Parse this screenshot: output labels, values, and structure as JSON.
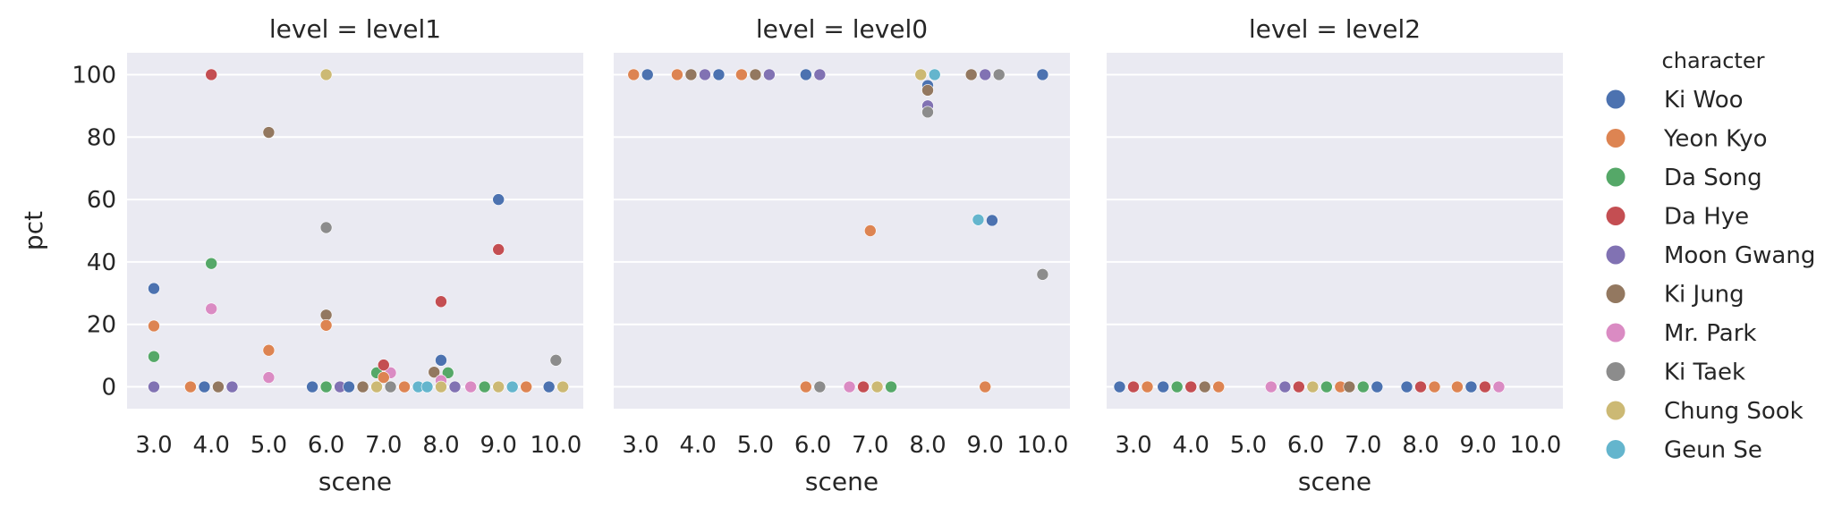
{
  "chart_data": {
    "type": "scatter",
    "facet_variable": "level",
    "ylabel": "pct",
    "xlabel": "scene",
    "ylim": [
      -7,
      107
    ],
    "y_ticks": [
      0,
      20,
      40,
      60,
      80,
      100
    ],
    "x_categories": [
      "3.0",
      "4.0",
      "5.0",
      "6.0",
      "7.0",
      "8.0",
      "9.0",
      "10.0"
    ],
    "grid": true,
    "legend": {
      "title": "character",
      "placement": "right",
      "entries": [
        {
          "name": "Ki Woo",
          "color": "#4c72b0"
        },
        {
          "name": "Yeon Kyo",
          "color": "#dd8452"
        },
        {
          "name": "Da Song",
          "color": "#55a868"
        },
        {
          "name": "Da Hye",
          "color": "#c44e52"
        },
        {
          "name": "Moon Gwang",
          "color": "#8172b3"
        },
        {
          "name": "Ki Jung",
          "color": "#937860"
        },
        {
          "name": "Mr. Park",
          "color": "#da8bc3"
        },
        {
          "name": "Ki Taek",
          "color": "#8c8c8c"
        },
        {
          "name": "Chung Sook",
          "color": "#ccb974"
        },
        {
          "name": "Geun Se",
          "color": "#64b5cd"
        }
      ]
    },
    "panels": [
      {
        "title": "level = level1",
        "points": [
          {
            "scene": 3.0,
            "character": "Ki Woo",
            "pct": 31.5
          },
          {
            "scene": 3.0,
            "character": "Yeon Kyo",
            "pct": 19.5
          },
          {
            "scene": 3.0,
            "character": "Da Song",
            "pct": 9.7
          },
          {
            "scene": 3.0,
            "character": "Moon Gwang",
            "pct": 0
          },
          {
            "scene": 4.0,
            "character": "Da Hye",
            "pct": 100
          },
          {
            "scene": 4.0,
            "character": "Da Song",
            "pct": 39.5
          },
          {
            "scene": 4.0,
            "character": "Mr. Park",
            "pct": 25
          },
          {
            "scene": 4.0,
            "character": "Yeon Kyo",
            "pct": 0
          },
          {
            "scene": 4.0,
            "character": "Ki Woo",
            "pct": 0
          },
          {
            "scene": 4.0,
            "character": "Ki Jung",
            "pct": 0
          },
          {
            "scene": 4.0,
            "character": "Moon Gwang",
            "pct": 0
          },
          {
            "scene": 5.0,
            "character": "Ki Jung",
            "pct": 81.5
          },
          {
            "scene": 5.0,
            "character": "Yeon Kyo",
            "pct": 11.7
          },
          {
            "scene": 5.0,
            "character": "Mr. Park",
            "pct": 3
          },
          {
            "scene": 6.0,
            "character": "Chung Sook",
            "pct": 100
          },
          {
            "scene": 6.0,
            "character": "Ki Taek",
            "pct": 51
          },
          {
            "scene": 6.0,
            "character": "Ki Jung",
            "pct": 23
          },
          {
            "scene": 6.0,
            "character": "Yeon Kyo",
            "pct": 19.7
          },
          {
            "scene": 6.0,
            "character": "Ki Woo",
            "pct": 0
          },
          {
            "scene": 6.0,
            "character": "Da Song",
            "pct": 0
          },
          {
            "scene": 6.0,
            "character": "Moon Gwang",
            "pct": 0
          },
          {
            "scene": 7.0,
            "character": "Da Song",
            "pct": 4.5
          },
          {
            "scene": 7.0,
            "character": "Mr. Park",
            "pct": 4.5
          },
          {
            "scene": 7.0,
            "character": "Da Hye",
            "pct": 7
          },
          {
            "scene": 7.0,
            "character": "Yeon Kyo",
            "pct": 3
          },
          {
            "scene": 7.0,
            "character": "Ki Woo",
            "pct": 0
          },
          {
            "scene": 7.0,
            "character": "Ki Jung",
            "pct": 0
          },
          {
            "scene": 7.0,
            "character": "Chung Sook",
            "pct": 0
          },
          {
            "scene": 7.0,
            "character": "Ki Taek",
            "pct": 0
          },
          {
            "scene": 7.0,
            "character": "Yeon Kyo",
            "pct": 0
          },
          {
            "scene": 7.0,
            "character": "Geun Se",
            "pct": 0
          },
          {
            "scene": 8.0,
            "character": "Da Hye",
            "pct": 27.3
          },
          {
            "scene": 8.0,
            "character": "Ki Woo",
            "pct": 8.5
          },
          {
            "scene": 8.0,
            "character": "Ki Jung",
            "pct": 4.7
          },
          {
            "scene": 8.0,
            "character": "Da Song",
            "pct": 4.5
          },
          {
            "scene": 8.0,
            "character": "Mr. Park",
            "pct": 2
          },
          {
            "scene": 8.0,
            "character": "Geun Se",
            "pct": 0
          },
          {
            "scene": 8.0,
            "character": "Chung Sook",
            "pct": 0
          },
          {
            "scene": 8.0,
            "character": "Moon Gwang",
            "pct": 0
          },
          {
            "scene": 9.0,
            "character": "Ki Woo",
            "pct": 60
          },
          {
            "scene": 9.0,
            "character": "Da Hye",
            "pct": 44
          },
          {
            "scene": 9.0,
            "character": "Mr. Park",
            "pct": 0
          },
          {
            "scene": 9.0,
            "character": "Da Song",
            "pct": 0
          },
          {
            "scene": 9.0,
            "character": "Chung Sook",
            "pct": 0
          },
          {
            "scene": 9.0,
            "character": "Geun Se",
            "pct": 0
          },
          {
            "scene": 9.0,
            "character": "Yeon Kyo",
            "pct": 0
          },
          {
            "scene": 10.0,
            "character": "Ki Taek",
            "pct": 8.5
          },
          {
            "scene": 10.0,
            "character": "Ki Woo",
            "pct": 0
          },
          {
            "scene": 10.0,
            "character": "Chung Sook",
            "pct": 0
          }
        ]
      },
      {
        "title": "level = level0",
        "points": [
          {
            "scene": 3.0,
            "character": "Yeon Kyo",
            "pct": 100
          },
          {
            "scene": 3.0,
            "character": "Ki Woo",
            "pct": 100
          },
          {
            "scene": 4.0,
            "character": "Yeon Kyo",
            "pct": 100
          },
          {
            "scene": 4.0,
            "character": "Ki Jung",
            "pct": 100
          },
          {
            "scene": 4.0,
            "character": "Moon Gwang",
            "pct": 100
          },
          {
            "scene": 4.0,
            "character": "Ki Woo",
            "pct": 100
          },
          {
            "scene": 5.0,
            "character": "Yeon Kyo",
            "pct": 100
          },
          {
            "scene": 5.0,
            "character": "Ki Jung",
            "pct": 100
          },
          {
            "scene": 5.0,
            "character": "Moon Gwang",
            "pct": 100
          },
          {
            "scene": 6.0,
            "character": "Ki Woo",
            "pct": 100
          },
          {
            "scene": 6.0,
            "character": "Moon Gwang",
            "pct": 100
          },
          {
            "scene": 6.0,
            "character": "Yeon Kyo",
            "pct": 0
          },
          {
            "scene": 6.0,
            "character": "Ki Taek",
            "pct": 0
          },
          {
            "scene": 7.0,
            "character": "Yeon Kyo",
            "pct": 50
          },
          {
            "scene": 7.0,
            "character": "Mr. Park",
            "pct": 0
          },
          {
            "scene": 7.0,
            "character": "Da Hye",
            "pct": 0
          },
          {
            "scene": 7.0,
            "character": "Chung Sook",
            "pct": 0
          },
          {
            "scene": 7.0,
            "character": "Da Song",
            "pct": 0
          },
          {
            "scene": 8.0,
            "character": "Chung Sook",
            "pct": 100
          },
          {
            "scene": 8.0,
            "character": "Geun Se",
            "pct": 100
          },
          {
            "scene": 8.0,
            "character": "Ki Woo",
            "pct": 96.5
          },
          {
            "scene": 8.0,
            "character": "Ki Jung",
            "pct": 95
          },
          {
            "scene": 8.0,
            "character": "Moon Gwang",
            "pct": 90
          },
          {
            "scene": 8.0,
            "character": "Ki Taek",
            "pct": 88
          },
          {
            "scene": 9.0,
            "character": "Ki Jung",
            "pct": 100
          },
          {
            "scene": 9.0,
            "character": "Moon Gwang",
            "pct": 100
          },
          {
            "scene": 9.0,
            "character": "Ki Taek",
            "pct": 100
          },
          {
            "scene": 9.0,
            "character": "Geun Se",
            "pct": 53.5
          },
          {
            "scene": 9.0,
            "character": "Ki Woo",
            "pct": 53.3
          },
          {
            "scene": 9.0,
            "character": "Yeon Kyo",
            "pct": 0
          },
          {
            "scene": 10.0,
            "character": "Ki Woo",
            "pct": 100
          },
          {
            "scene": 10.0,
            "character": "Ki Taek",
            "pct": 36
          }
        ]
      },
      {
        "title": "level = level2",
        "points": [
          {
            "scene": 3.0,
            "character": "Ki Woo",
            "pct": 0
          },
          {
            "scene": 3.0,
            "character": "Da Hye",
            "pct": 0
          },
          {
            "scene": 3.0,
            "character": "Yeon Kyo",
            "pct": 0
          },
          {
            "scene": 4.0,
            "character": "Ki Woo",
            "pct": 0
          },
          {
            "scene": 4.0,
            "character": "Da Song",
            "pct": 0
          },
          {
            "scene": 4.0,
            "character": "Da Hye",
            "pct": 0
          },
          {
            "scene": 4.0,
            "character": "Ki Jung",
            "pct": 0
          },
          {
            "scene": 4.0,
            "character": "Yeon Kyo",
            "pct": 0
          },
          {
            "scene": 6.0,
            "character": "Mr. Park",
            "pct": 0
          },
          {
            "scene": 6.0,
            "character": "Moon Gwang",
            "pct": 0
          },
          {
            "scene": 6.0,
            "character": "Da Hye",
            "pct": 0
          },
          {
            "scene": 6.0,
            "character": "Chung Sook",
            "pct": 0
          },
          {
            "scene": 6.0,
            "character": "Da Song",
            "pct": 0
          },
          {
            "scene": 6.0,
            "character": "Yeon Kyo",
            "pct": 0
          },
          {
            "scene": 7.0,
            "character": "Ki Jung",
            "pct": 0
          },
          {
            "scene": 7.0,
            "character": "Da Song",
            "pct": 0
          },
          {
            "scene": 7.0,
            "character": "Ki Woo",
            "pct": 0
          },
          {
            "scene": 8.0,
            "character": "Ki Woo",
            "pct": 0
          },
          {
            "scene": 8.0,
            "character": "Da Hye",
            "pct": 0
          },
          {
            "scene": 8.0,
            "character": "Yeon Kyo",
            "pct": 0
          },
          {
            "scene": 9.0,
            "character": "Yeon Kyo",
            "pct": 0
          },
          {
            "scene": 9.0,
            "character": "Ki Woo",
            "pct": 0
          },
          {
            "scene": 9.0,
            "character": "Da Hye",
            "pct": 0
          },
          {
            "scene": 9.0,
            "character": "Mr. Park",
            "pct": 0
          }
        ]
      }
    ]
  }
}
